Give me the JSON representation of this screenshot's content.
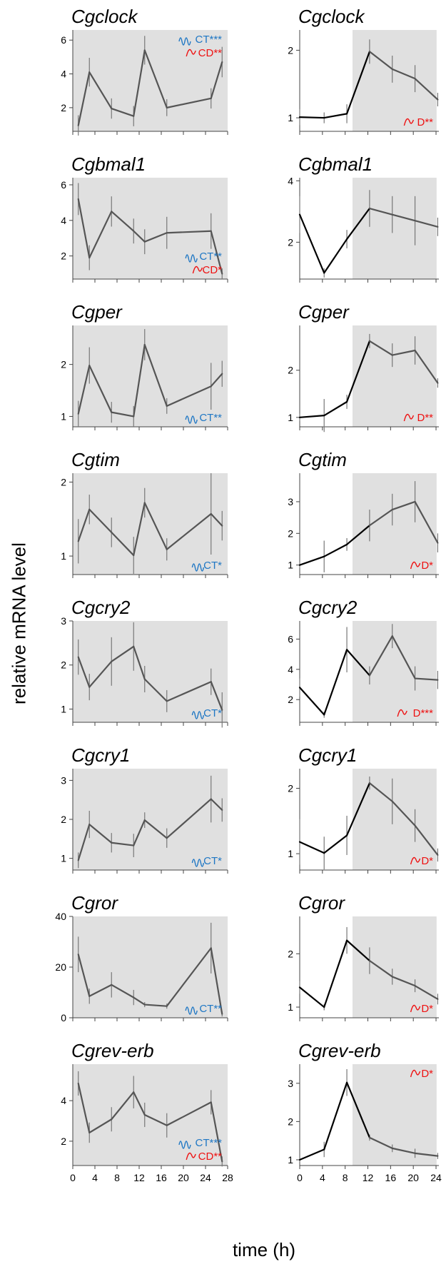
{
  "figure": {
    "ylabel": "relative mRNA level",
    "xlabel": "time (h)"
  },
  "colors": {
    "shade": "#e0e0e0",
    "line_left": "#555555",
    "line_right_dark": "#000000",
    "line_right_shade": "#555555",
    "blue": "#1f77c4",
    "red": "#ee1111",
    "errbar": "#777777"
  },
  "chart_data": [
    {
      "type": "line",
      "title": "Cgclock",
      "panel": "left",
      "xlim": [
        0,
        28
      ],
      "ylim": [
        0.6,
        6.6
      ],
      "xticks": [
        0,
        4,
        8,
        12,
        16,
        20,
        24,
        28
      ],
      "yticks": [
        2,
        4,
        6
      ],
      "series": [
        {
          "x": [
            1,
            3,
            7,
            11,
            13,
            17,
            25,
            27
          ],
          "y": [
            0.95,
            4.1,
            1.95,
            1.5,
            5.4,
            2.0,
            2.55,
            4.7
          ],
          "err": [
            0.6,
            0.85,
            0.6,
            0.6,
            0.85,
            0.5,
            0.6,
            0.9
          ]
        }
      ],
      "annotations": [
        {
          "text": "CT***",
          "color": "blue",
          "icon": "wave"
        },
        {
          "text": "CD**",
          "color": "red",
          "icon": "curve"
        }
      ],
      "ann_pos": "top-right"
    },
    {
      "type": "line",
      "title": "Cgclock",
      "panel": "right",
      "xlim": [
        0,
        24.5
      ],
      "ylim": [
        0.8,
        2.3
      ],
      "xticks": [
        0,
        4,
        8,
        12,
        16,
        20,
        24
      ],
      "yticks": [
        1,
        2
      ],
      "shade_from": 9.3,
      "series": [
        {
          "x": [
            0,
            4.3,
            8.3,
            12.3,
            16.3,
            20.3,
            24.3
          ],
          "y": [
            1.01,
            1.0,
            1.06,
            1.98,
            1.72,
            1.58,
            1.27
          ],
          "err": [
            0.12,
            0.08,
            0.14,
            0.18,
            0.2,
            0.2,
            0.1
          ]
        }
      ],
      "annotations": [
        {
          "text": "D**",
          "color": "red",
          "icon": "curve"
        }
      ],
      "ann_pos": "bottom-right"
    },
    {
      "type": "line",
      "title": "Cgbmal1",
      "panel": "left",
      "xlim": [
        0,
        28
      ],
      "ylim": [
        0.7,
        6.4
      ],
      "xticks": [
        0,
        4,
        8,
        12,
        16,
        20,
        24,
        28
      ],
      "yticks": [
        2,
        4,
        6
      ],
      "series": [
        {
          "x": [
            1,
            3,
            7,
            11,
            13,
            17,
            25,
            27
          ],
          "y": [
            5.2,
            1.9,
            4.5,
            3.4,
            2.8,
            3.3,
            3.4,
            1.0
          ],
          "err": [
            0.9,
            0.7,
            0.85,
            0.7,
            0.7,
            0.9,
            1.0,
            0.3
          ]
        }
      ],
      "annotations": [
        {
          "text": "CT**",
          "color": "blue",
          "icon": "wave"
        },
        {
          "text": "CD*",
          "color": "red",
          "icon": "curve"
        }
      ],
      "ann_pos": "bottom-right"
    },
    {
      "type": "line",
      "title": "Cgbmal1",
      "panel": "right",
      "xlim": [
        0,
        24.5
      ],
      "ylim": [
        0.8,
        4.1
      ],
      "xticks": [
        0,
        4,
        8,
        12,
        16,
        20,
        24
      ],
      "yticks": [
        2,
        4
      ],
      "shade_from": 9.3,
      "series": [
        {
          "x": [
            0,
            4.3,
            8.3,
            12.3,
            16.3,
            20.3,
            24.3
          ],
          "y": [
            2.9,
            1.0,
            2.1,
            3.1,
            2.9,
            2.7,
            2.5
          ],
          "err": [
            0.6,
            0.15,
            0.3,
            0.6,
            0.6,
            0.8,
            0.3
          ]
        }
      ],
      "annotations": [],
      "ann_pos": "bottom-right"
    },
    {
      "type": "line",
      "title": "Cgper",
      "panel": "left",
      "xlim": [
        0,
        28
      ],
      "ylim": [
        0.8,
        2.75
      ],
      "xticks": [
        0,
        4,
        8,
        12,
        16,
        20,
        24,
        28
      ],
      "yticks": [
        1,
        2
      ],
      "series": [
        {
          "x": [
            1,
            3,
            7,
            11,
            13,
            17,
            25,
            27
          ],
          "y": [
            1.05,
            1.98,
            1.08,
            1.0,
            2.38,
            1.2,
            1.58,
            1.82
          ],
          "err": [
            0.25,
            0.35,
            0.2,
            0.2,
            0.3,
            0.15,
            0.45,
            0.25
          ]
        }
      ],
      "annotations": [
        {
          "text": "CT**",
          "color": "blue",
          "icon": "wave"
        }
      ],
      "ann_pos": "bottom-right"
    },
    {
      "type": "line",
      "title": "Cgper",
      "panel": "right",
      "xlim": [
        0,
        24.5
      ],
      "ylim": [
        0.8,
        2.95
      ],
      "xticks": [
        0,
        4,
        8,
        12,
        16,
        20,
        24
      ],
      "yticks": [
        1,
        2
      ],
      "shade_from": 9.3,
      "series": [
        {
          "x": [
            0,
            4.3,
            8.3,
            12.3,
            16.3,
            20.3,
            24.3
          ],
          "y": [
            1.0,
            1.04,
            1.33,
            2.62,
            2.32,
            2.42,
            1.73
          ],
          "err": [
            0.08,
            0.35,
            0.15,
            0.15,
            0.25,
            0.3,
            0.1
          ]
        }
      ],
      "annotations": [
        {
          "text": "D**",
          "color": "red",
          "icon": "curve"
        }
      ],
      "ann_pos": "bottom-right"
    },
    {
      "type": "line",
      "title": "Cgtim",
      "panel": "left",
      "xlim": [
        0,
        28
      ],
      "ylim": [
        0.75,
        2.12
      ],
      "xticks": [
        0,
        4,
        8,
        12,
        16,
        20,
        24,
        28
      ],
      "yticks": [
        1,
        2
      ],
      "series": [
        {
          "x": [
            1,
            3,
            7,
            11,
            13,
            17,
            25,
            27
          ],
          "y": [
            1.2,
            1.63,
            1.32,
            1.01,
            1.72,
            1.09,
            1.57,
            1.41
          ],
          "err": [
            0.3,
            0.2,
            0.2,
            0.25,
            0.2,
            0.15,
            0.55,
            0.2
          ]
        }
      ],
      "annotations": [
        {
          "text": "CT*",
          "color": "blue",
          "icon": "wave"
        }
      ],
      "ann_pos": "bottom-right"
    },
    {
      "type": "line",
      "title": "Cgtim",
      "panel": "right",
      "xlim": [
        0,
        24.5
      ],
      "ylim": [
        0.7,
        3.9
      ],
      "xticks": [
        0,
        4,
        8,
        12,
        16,
        20,
        24
      ],
      "yticks": [
        1,
        2,
        3
      ],
      "shade_from": 9.3,
      "series": [
        {
          "x": [
            0,
            4.3,
            8.3,
            12.3,
            16.3,
            20.3,
            24.3
          ],
          "y": [
            1.0,
            1.27,
            1.65,
            2.25,
            2.75,
            3.0,
            1.7
          ],
          "err": [
            0.1,
            0.5,
            0.2,
            0.5,
            0.5,
            0.65,
            0.3
          ]
        }
      ],
      "annotations": [
        {
          "text": "D*",
          "color": "red",
          "icon": "curve"
        }
      ],
      "ann_pos": "bottom-right"
    },
    {
      "type": "line",
      "title": "Cgcry2",
      "panel": "left",
      "xlim": [
        0,
        28
      ],
      "ylim": [
        0.7,
        3.0
      ],
      "xticks": [
        0,
        4,
        8,
        12,
        16,
        20,
        24,
        28
      ],
      "yticks": [
        1,
        2,
        3
      ],
      "series": [
        {
          "x": [
            1,
            3,
            7,
            11,
            13,
            17,
            25,
            27
          ],
          "y": [
            2.18,
            1.5,
            2.08,
            2.42,
            1.68,
            1.18,
            1.62,
            0.98
          ],
          "err": [
            0.4,
            0.3,
            0.55,
            0.55,
            0.3,
            0.25,
            0.3,
            0.4
          ]
        }
      ],
      "annotations": [
        {
          "text": "CT*",
          "color": "blue",
          "icon": "wave"
        }
      ],
      "ann_pos": "bottom-right"
    },
    {
      "type": "line",
      "title": "Cgcry2",
      "panel": "right",
      "xlim": [
        0,
        24.5
      ],
      "ylim": [
        0.5,
        7.2
      ],
      "xticks": [
        0,
        4,
        8,
        12,
        16,
        20,
        24
      ],
      "yticks": [
        2,
        4,
        6
      ],
      "shade_from": 9.3,
      "series": [
        {
          "x": [
            0,
            4.3,
            8.3,
            12.3,
            16.3,
            20.3,
            24.3
          ],
          "y": [
            2.8,
            1.0,
            5.3,
            3.6,
            6.2,
            3.4,
            3.3
          ],
          "err": [
            0.6,
            0.2,
            1.5,
            0.6,
            0.8,
            0.8,
            0.6
          ]
        }
      ],
      "annotations": [
        {
          "text": "D***",
          "color": "red",
          "icon": "curve"
        }
      ],
      "ann_pos": "bottom-right"
    },
    {
      "type": "line",
      "title": "Cgcry1",
      "panel": "left",
      "xlim": [
        0,
        28
      ],
      "ylim": [
        0.7,
        3.3
      ],
      "xticks": [
        0,
        4,
        8,
        12,
        16,
        20,
        24,
        28
      ],
      "yticks": [
        1,
        2,
        3
      ],
      "series": [
        {
          "x": [
            1,
            3,
            7,
            11,
            13,
            17,
            25,
            27
          ],
          "y": [
            0.95,
            1.87,
            1.4,
            1.33,
            1.98,
            1.52,
            2.52,
            2.24
          ],
          "err": [
            0.2,
            0.35,
            0.25,
            0.3,
            0.2,
            0.25,
            0.6,
            0.3
          ]
        }
      ],
      "annotations": [
        {
          "text": "CT*",
          "color": "blue",
          "icon": "wave"
        }
      ],
      "ann_pos": "bottom-right"
    },
    {
      "type": "line",
      "title": "Cgcry1",
      "panel": "right",
      "xlim": [
        0,
        24.5
      ],
      "ylim": [
        0.75,
        2.3
      ],
      "xticks": [
        0,
        4,
        8,
        12,
        16,
        20,
        24
      ],
      "yticks": [
        1,
        2
      ],
      "shade_from": 9.3,
      "series": [
        {
          "x": [
            0,
            4.3,
            8.3,
            12.3,
            16.3,
            20.3,
            24.3
          ],
          "y": [
            1.18,
            1.01,
            1.28,
            2.08,
            1.8,
            1.43,
            0.98
          ],
          "err": [
            0.35,
            0.25,
            0.3,
            0.1,
            0.35,
            0.25,
            0.1
          ]
        }
      ],
      "annotations": [
        {
          "text": "D*",
          "color": "red",
          "icon": "curve"
        }
      ],
      "ann_pos": "bottom-right"
    },
    {
      "type": "line",
      "title": "Cgror",
      "panel": "left",
      "xlim": [
        0,
        28
      ],
      "ylim": [
        0,
        40
      ],
      "xticks": [
        0,
        4,
        8,
        12,
        16,
        20,
        24,
        28
      ],
      "yticks": [
        0,
        20,
        40
      ],
      "series": [
        {
          "x": [
            1,
            3,
            7,
            11,
            13,
            17,
            25,
            27
          ],
          "y": [
            25,
            8.5,
            13,
            8,
            5.2,
            4.6,
            27.5,
            1.5
          ],
          "err": [
            7,
            3,
            5,
            3,
            1,
            1,
            10,
            1
          ]
        }
      ],
      "annotations": [
        {
          "text": "CT**",
          "color": "blue",
          "icon": "wave"
        }
      ],
      "ann_pos": "bottom-right"
    },
    {
      "type": "line",
      "title": "Cgror",
      "panel": "right",
      "xlim": [
        0,
        24.5
      ],
      "ylim": [
        0.8,
        2.7
      ],
      "xticks": [
        0,
        4,
        8,
        12,
        16,
        20,
        24
      ],
      "yticks": [
        1,
        2
      ],
      "shade_from": 9.3,
      "series": [
        {
          "x": [
            0,
            4.3,
            8.3,
            12.3,
            16.3,
            20.3,
            24.3
          ],
          "y": [
            1.37,
            1.0,
            2.25,
            1.87,
            1.57,
            1.4,
            1.15
          ],
          "err": [
            0.12,
            0.06,
            0.25,
            0.25,
            0.15,
            0.12,
            0.1
          ]
        }
      ],
      "annotations": [
        {
          "text": "D*",
          "color": "red",
          "icon": "curve"
        }
      ],
      "ann_pos": "bottom-right"
    },
    {
      "type": "line",
      "title": "Cgrev-erb",
      "panel": "left",
      "xlim": [
        0,
        28
      ],
      "ylim": [
        0.8,
        5.8
      ],
      "xticks": [
        0,
        4,
        8,
        12,
        16,
        20,
        24,
        28
      ],
      "yticks": [
        2,
        4
      ],
      "series": [
        {
          "x": [
            1,
            3,
            7,
            11,
            13,
            17,
            25,
            27
          ],
          "y": [
            4.85,
            2.42,
            3.08,
            4.42,
            3.3,
            2.78,
            3.92,
            1.0
          ],
          "err": [
            0.6,
            0.5,
            0.6,
            0.8,
            0.6,
            0.6,
            0.6,
            0.25
          ]
        }
      ],
      "annotations": [
        {
          "text": "CT***",
          "color": "blue",
          "icon": "wave"
        },
        {
          "text": "CD**",
          "color": "red",
          "icon": "curve"
        }
      ],
      "ann_pos": "bottom-right"
    },
    {
      "type": "line",
      "title": "Cgrev-erb",
      "panel": "right",
      "xlim": [
        0,
        24.5
      ],
      "ylim": [
        0.85,
        3.5
      ],
      "xticks": [
        0,
        4,
        8,
        12,
        16,
        20,
        24
      ],
      "yticks": [
        1,
        2,
        3
      ],
      "shade_from": 9.3,
      "series": [
        {
          "x": [
            0,
            4.3,
            8.3,
            12.3,
            16.3,
            20.3,
            24.3
          ],
          "y": [
            1.0,
            1.27,
            3.02,
            1.58,
            1.3,
            1.17,
            1.1
          ],
          "err": [
            0.05,
            0.2,
            0.35,
            0.08,
            0.1,
            0.12,
            0.08
          ]
        }
      ],
      "annotations": [
        {
          "text": "D*",
          "color": "red",
          "icon": "curve"
        }
      ],
      "ann_pos": "top-right"
    }
  ]
}
